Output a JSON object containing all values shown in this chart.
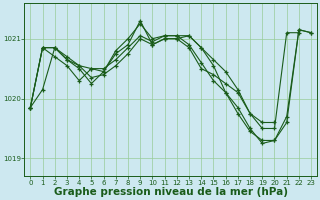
{
  "background_color": "#cde8f0",
  "plot_bg_color": "#cde8f0",
  "line_color": "#1a5c1a",
  "grid_color": "#99cc99",
  "xlabel": "Graphe pression niveau de la mer (hPa)",
  "xlabel_fontsize": 7.5,
  "xlim": [
    -0.5,
    23.5
  ],
  "ylim": [
    1018.7,
    1021.6
  ],
  "yticks": [
    1019,
    1020,
    1021
  ],
  "xticks": [
    0,
    1,
    2,
    3,
    4,
    5,
    6,
    7,
    8,
    9,
    10,
    11,
    12,
    13,
    14,
    15,
    16,
    17,
    18,
    19,
    20,
    21,
    22,
    23
  ],
  "series": [
    {
      "x": [
        0,
        1,
        2,
        3,
        4,
        5,
        6,
        7,
        8,
        9,
        10,
        11,
        12,
        13,
        14,
        15,
        16,
        17,
        18,
        19,
        20,
        21,
        22
      ],
      "y": [
        1019.85,
        1020.85,
        1020.85,
        1020.65,
        1020.55,
        1020.5,
        1020.5,
        1020.65,
        1020.85,
        1021.05,
        1020.95,
        1021.05,
        1021.05,
        1021.05,
        1020.85,
        1020.65,
        1020.45,
        1020.15,
        1019.75,
        1019.5,
        1019.5,
        1021.1,
        1021.1
      ]
    },
    {
      "x": [
        0,
        1,
        2,
        3,
        4,
        5,
        6,
        7,
        8,
        9,
        10,
        11,
        12,
        13,
        14,
        15,
        16,
        17,
        18,
        19,
        20,
        21,
        22,
        23
      ],
      "y": [
        1019.85,
        1020.85,
        1020.85,
        1020.65,
        1020.5,
        1020.25,
        1020.45,
        1020.75,
        1020.9,
        1021.3,
        1020.9,
        1021.0,
        1021.0,
        1021.05,
        1020.85,
        1020.55,
        1020.1,
        1019.85,
        1019.5,
        1019.25,
        1019.3,
        1019.7,
        1021.15,
        1021.1
      ]
    },
    {
      "x": [
        0,
        1,
        2,
        3,
        4,
        5,
        6,
        7,
        8,
        9,
        10,
        11,
        12,
        13,
        14,
        15,
        16,
        17,
        18,
        19,
        20,
        21,
        22,
        23
      ],
      "y": [
        1019.85,
        1020.85,
        1020.7,
        1020.55,
        1020.3,
        1020.5,
        1020.45,
        1020.8,
        1021.0,
        1021.25,
        1021.0,
        1021.05,
        1021.05,
        1020.9,
        1020.6,
        1020.3,
        1020.1,
        1019.75,
        1019.45,
        1019.3,
        1019.3,
        1019.6,
        1021.15,
        1021.1
      ]
    },
    {
      "x": [
        0,
        1,
        2,
        3,
        4,
        5,
        6,
        7,
        8,
        9,
        10,
        11,
        12,
        13,
        14,
        15,
        16,
        17,
        18,
        19,
        20
      ],
      "y": [
        1019.85,
        1020.15,
        1020.85,
        1020.7,
        1020.55,
        1020.35,
        1020.4,
        1020.55,
        1020.75,
        1021.0,
        1020.9,
        1021.0,
        1021.0,
        1020.85,
        1020.5,
        1020.4,
        1020.25,
        1020.1,
        1019.75,
        1019.6,
        1019.6
      ]
    }
  ]
}
